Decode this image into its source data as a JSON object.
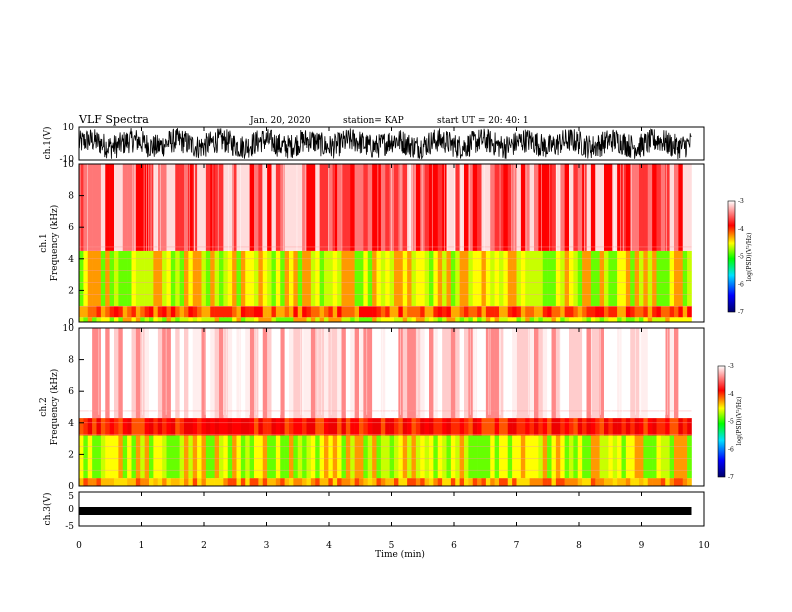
{
  "header": {
    "title": "VLF Spectra",
    "date": "Jan. 20, 2020",
    "station": "station= KAP",
    "start_ut": "start UT =  20: 40: 1"
  },
  "chart_data": [
    {
      "id": "ch1-waveform",
      "type": "line",
      "ylabel": "ch.1(V)",
      "ylim": [
        -10,
        10
      ],
      "xlim": [
        0,
        10
      ],
      "yticks": [
        "10",
        "-10"
      ],
      "note": "dense noisy waveform spanning roughly -8 to 8 V, from t=0 to 9.8 min"
    },
    {
      "id": "ch1-spectrogram",
      "type": "heatmap",
      "ylabel": "ch.1\nFrequency (kHz)",
      "ylabel_lines": [
        "ch.1",
        "Frequency (kHz)"
      ],
      "ylim": [
        0,
        10
      ],
      "xlim": [
        0,
        10
      ],
      "yticks": [
        "0",
        "2",
        "4",
        "6",
        "8",
        "10"
      ],
      "colorbar": {
        "label": "log(PSD)(V²/Hz)",
        "range": [
          -7,
          -3
        ],
        "ticks": [
          "-3",
          "-4",
          "-5",
          "-6",
          "-7"
        ]
      },
      "bands_khz": [
        {
          "from": 0.0,
          "to": 0.3,
          "level": "yellow-green"
        },
        {
          "from": 0.3,
          "to": 1.0,
          "level": "red-orange"
        },
        {
          "from": 1.0,
          "to": 4.5,
          "level": "yellow-green"
        },
        {
          "from": 4.5,
          "to": 10.0,
          "level": "red-white"
        }
      ]
    },
    {
      "id": "ch2-spectrogram",
      "type": "heatmap",
      "ylabel": "ch.2\nFrequency (kHz)",
      "ylabel_lines": [
        "ch.2",
        "Frequency (kHz)"
      ],
      "ylim": [
        0,
        10
      ],
      "xlim": [
        0,
        10
      ],
      "yticks": [
        "0",
        "2",
        "4",
        "6",
        "8",
        "10"
      ],
      "colorbar": {
        "label": "log(PSD)(V²/Hz)",
        "range": [
          -7,
          -3
        ],
        "ticks": [
          "-3",
          "-4",
          "-5",
          "-6",
          "-7"
        ]
      },
      "bands_khz": [
        {
          "from": 0.0,
          "to": 0.5,
          "level": "orange"
        },
        {
          "from": 0.5,
          "to": 3.2,
          "level": "yellow-green"
        },
        {
          "from": 3.2,
          "to": 4.3,
          "level": "red"
        },
        {
          "from": 4.3,
          "to": 10.0,
          "level": "white-pink"
        }
      ]
    },
    {
      "id": "ch3-waveform",
      "type": "line",
      "ylabel": "ch.3(V)",
      "ylim": [
        -5,
        5
      ],
      "xlim": [
        0,
        10
      ],
      "yticks": [
        "5",
        "0",
        "-5"
      ],
      "note": "thick constant-amplitude band near -1 V from t=0 to 9.8 min"
    }
  ],
  "xaxis": {
    "label": "Time (min)",
    "ticks": [
      "0",
      "1",
      "2",
      "3",
      "4",
      "5",
      "6",
      "7",
      "8",
      "9",
      "10"
    ],
    "data_end_min": 9.8
  },
  "colors": {
    "colormap": [
      "#00007a",
      "#0000ff",
      "#00ffff",
      "#00ff00",
      "#ffff00",
      "#ff0000",
      "#ffffff"
    ]
  }
}
